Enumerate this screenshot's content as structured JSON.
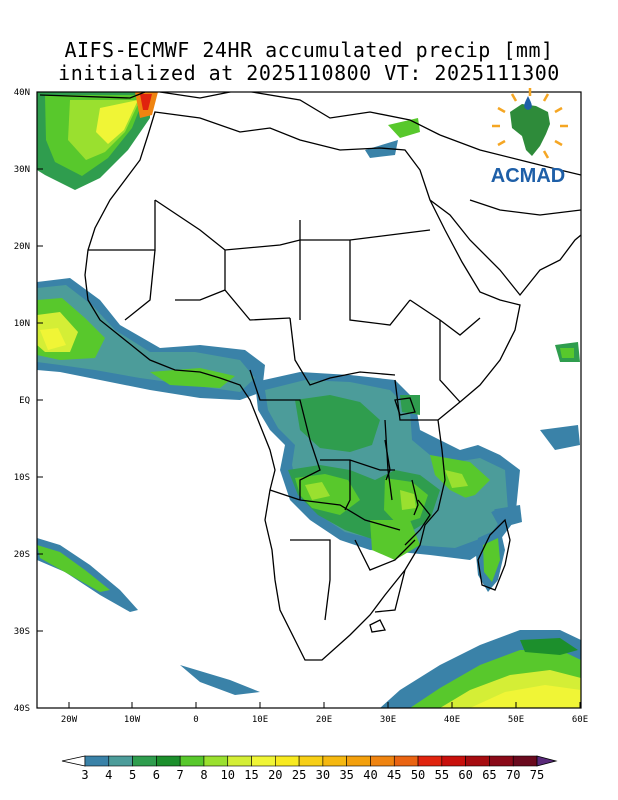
{
  "title": {
    "line1": "AIFS-ECMWF 24HR accumulated precip [mm]",
    "line2": "initialized at 2025110800 VT: 2025111300"
  },
  "map": {
    "lat_labels": [
      "40N",
      "30N",
      "20N",
      "10N",
      "EQ",
      "10S",
      "20S",
      "30S",
      "40S"
    ],
    "lon_labels": [
      "20W",
      "10W",
      "0",
      "10E",
      "20E",
      "30E",
      "40E",
      "50E",
      "60E"
    ],
    "extent": {
      "lon": [
        -25,
        60
      ],
      "lat": [
        -40,
        40
      ]
    }
  },
  "logo": {
    "text": "ACMAD"
  },
  "colorbar": {
    "labels": [
      "3",
      "4",
      "5",
      "6",
      "7",
      "8",
      "10",
      "15",
      "20",
      "25",
      "30",
      "35",
      "40",
      "45",
      "50",
      "55",
      "60",
      "65",
      "70",
      "75"
    ],
    "colors": [
      "#3a82a8",
      "#4c9c9a",
      "#2f9d4e",
      "#1c8f2c",
      "#58c82c",
      "#9ae02f",
      "#d4ee36",
      "#f0f536",
      "#f8ea20",
      "#f7cf16",
      "#f5b810",
      "#f3a00d",
      "#ef8410",
      "#ea6412",
      "#e0240e",
      "#c8100c",
      "#a60c10",
      "#8a0a18",
      "#6a0a1e",
      "#5a2a7a"
    ]
  }
}
